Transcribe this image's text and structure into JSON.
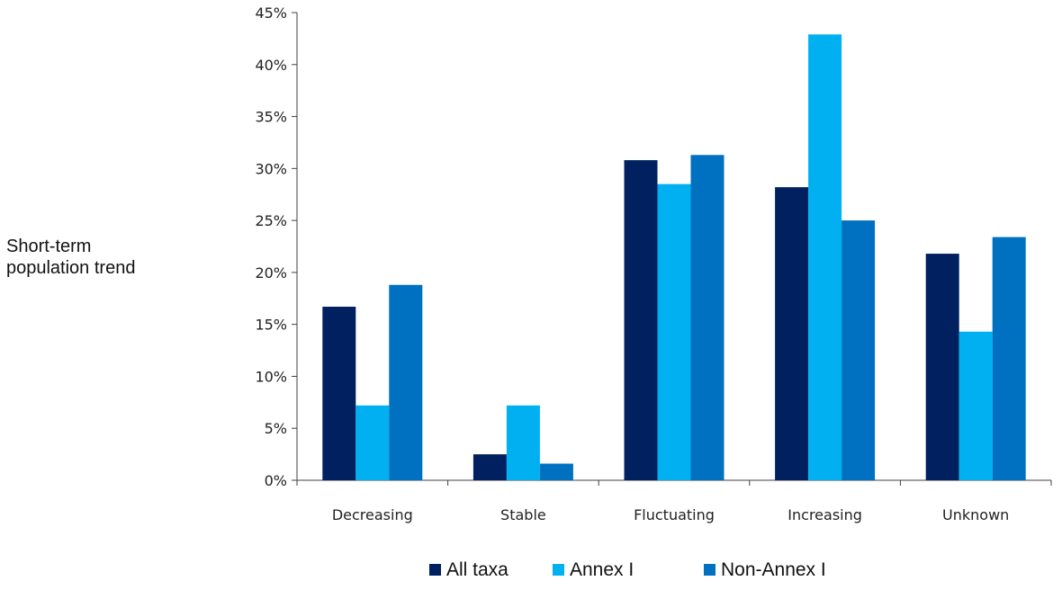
{
  "chart_data": {
    "type": "bar",
    "title": "",
    "xlabel": "",
    "ylabel": "Short-term population trend",
    "categories": [
      "Decreasing",
      "Stable",
      "Fluctuating",
      "Increasing",
      "Unknown"
    ],
    "series": [
      {
        "name": "All taxa",
        "color": "#002060",
        "values": [
          16.7,
          2.5,
          30.8,
          28.2,
          21.8
        ]
      },
      {
        "name": "Annex I",
        "color": "#00b0f0",
        "values": [
          7.2,
          7.2,
          28.5,
          42.9,
          14.3
        ]
      },
      {
        "name": "Non-Annex I",
        "color": "#0070c0",
        "values": [
          18.8,
          1.6,
          31.3,
          25.0,
          23.4
        ]
      }
    ],
    "ylim": [
      0,
      45
    ],
    "yticks": [
      0,
      5,
      10,
      15,
      20,
      25,
      30,
      35,
      40,
      45
    ],
    "ytick_labels": [
      "0%",
      "5%",
      "10%",
      "15%",
      "20%",
      "25%",
      "30%",
      "35%",
      "40%",
      "45%"
    ],
    "grid": false,
    "legend_position": "bottom"
  },
  "side_label": {
    "line1": "Short-term",
    "line2": "population trend"
  }
}
